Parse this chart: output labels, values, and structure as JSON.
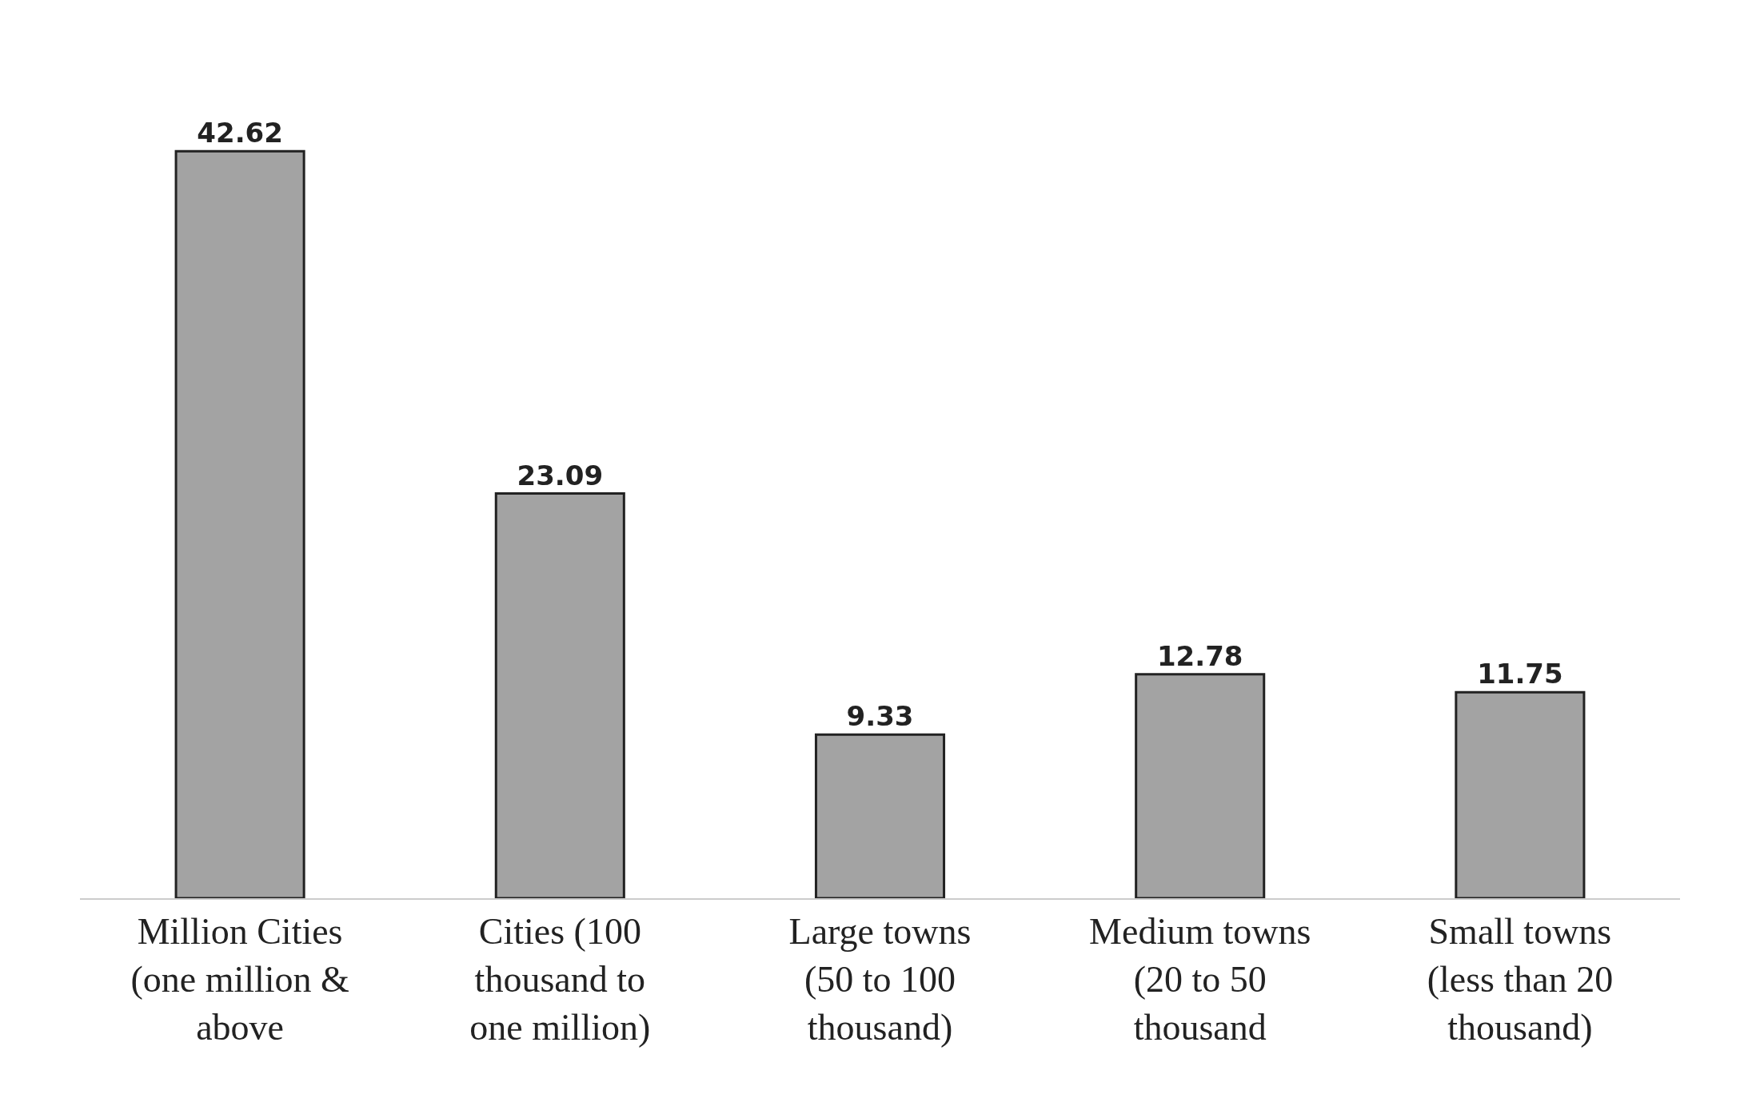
{
  "chart_data": {
    "type": "bar",
    "categories": [
      "Million Cities (one million & above",
      "Cities (100 thousand to one million)",
      "Large towns (50 to 100 thousand)",
      "Medium towns (20 to 50 thousand",
      "Small towns (less than 20 thousand)"
    ],
    "values": [
      42.62,
      23.09,
      9.33,
      12.78,
      11.75
    ],
    "color": "#a3a3a3",
    "data_labels": true
  }
}
